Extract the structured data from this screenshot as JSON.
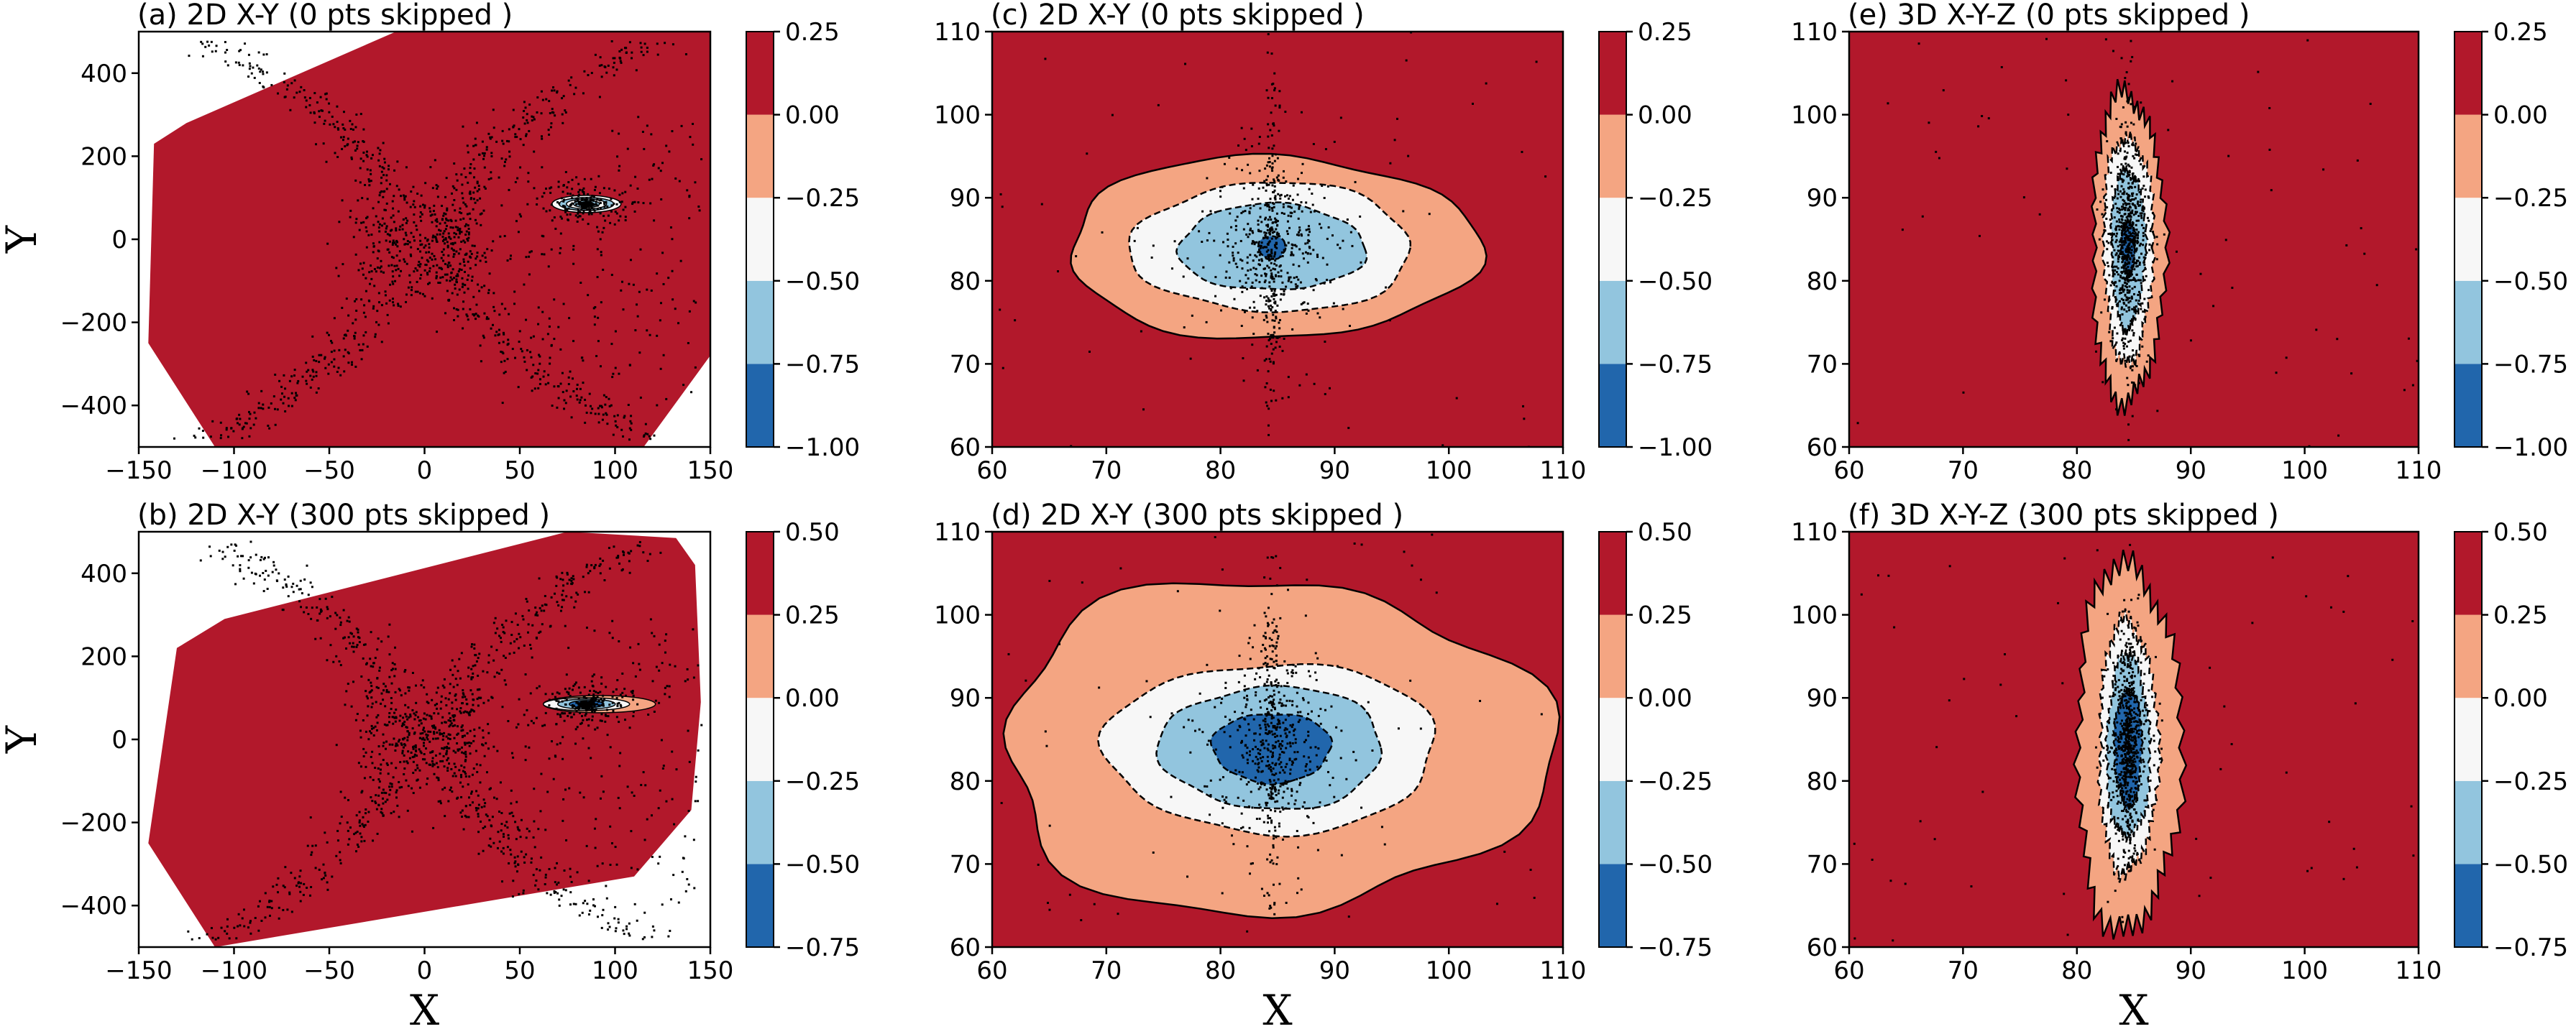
{
  "colors": {
    "level_red": "#b2182b",
    "level_salmon": "#f4a582",
    "level_white": "#f7f7f7",
    "level_lightblue": "#92c5de",
    "level_blue": "#2166ac"
  },
  "chart_data": [
    {
      "id": "a",
      "type": "contour",
      "title": "(a) 2D X-Y (0 pts skipped )",
      "xlabel": "",
      "ylabel": "Y",
      "xlim": [
        -150,
        150
      ],
      "ylim": [
        -500,
        500
      ],
      "xticks": [
        -150,
        -100,
        -50,
        0,
        50,
        100,
        150
      ],
      "yticks": [
        -400,
        -200,
        0,
        200,
        400
      ],
      "xtick_labels": [
        "−150",
        "−100",
        "−50",
        "0",
        "50",
        "100",
        "150"
      ],
      "ytick_labels": [
        "−400",
        "−200",
        "0",
        "200",
        "400"
      ],
      "colorbar": {
        "levels": [
          -1.0,
          -0.75,
          -0.5,
          -0.25,
          0.0,
          0.25
        ],
        "labels": [
          "−1.00",
          "−0.75",
          "−0.50",
          "−0.25",
          "0.00",
          "0.25"
        ]
      },
      "center": [
        85,
        85
      ],
      "hull": [
        [
          -142,
          230
        ],
        [
          -125,
          280
        ],
        [
          -15,
          500
        ],
        [
          150,
          500
        ],
        [
          150,
          -280
        ],
        [
          115,
          -500
        ],
        [
          -110,
          -500
        ],
        [
          -145,
          -250
        ]
      ],
      "regions": [
        [
          0.0,
          0.25
        ],
        [
          -0.25,
          0.0
        ],
        [
          -0.5,
          -0.25
        ],
        [
          -0.75,
          -0.5
        ],
        [
          -1.0,
          -0.75
        ]
      ]
    },
    {
      "id": "b",
      "type": "contour",
      "title": "(b) 2D X-Y (300 pts skipped )",
      "xlabel": "X",
      "ylabel": "Y",
      "xlim": [
        -150,
        150
      ],
      "ylim": [
        -500,
        500
      ],
      "xticks": [
        -150,
        -100,
        -50,
        0,
        50,
        100,
        150
      ],
      "yticks": [
        -400,
        -200,
        0,
        200,
        400
      ],
      "xtick_labels": [
        "−150",
        "−100",
        "−50",
        "0",
        "50",
        "100",
        "150"
      ],
      "ytick_labels": [
        "−400",
        "−200",
        "0",
        "200",
        "400"
      ],
      "colorbar": {
        "levels": [
          -0.75,
          -0.5,
          -0.25,
          0.0,
          0.25,
          0.5
        ],
        "labels": [
          "−0.75",
          "−0.50",
          "−0.25",
          "0.00",
          "0.25",
          "0.50"
        ]
      },
      "center": [
        85,
        85
      ],
      "hull": [
        [
          -130,
          220
        ],
        [
          -105,
          290
        ],
        [
          75,
          500
        ],
        [
          132,
          485
        ],
        [
          142,
          420
        ],
        [
          145,
          90
        ],
        [
          140,
          -170
        ],
        [
          110,
          -330
        ],
        [
          -110,
          -500
        ],
        [
          -145,
          -250
        ]
      ],
      "regions": [
        [
          0.25,
          0.5
        ],
        [
          0.0,
          0.25
        ],
        [
          -0.25,
          0.0
        ],
        [
          -0.5,
          -0.25
        ],
        [
          -0.75,
          -0.5
        ]
      ]
    },
    {
      "id": "c",
      "type": "contour",
      "title": "(c) 2D X-Y (0 pts skipped )",
      "xlabel": "",
      "ylabel": "",
      "xlim": [
        60,
        110
      ],
      "ylim": [
        60,
        110
      ],
      "xticks": [
        60,
        70,
        80,
        90,
        100,
        110
      ],
      "yticks": [
        60,
        70,
        80,
        90,
        100,
        110
      ],
      "xtick_labels": [
        "60",
        "70",
        "80",
        "90",
        "100",
        "110"
      ],
      "ytick_labels": [
        "60",
        "70",
        "80",
        "90",
        "100",
        "110"
      ],
      "colorbar": {
        "levels": [
          -1.0,
          -0.75,
          -0.5,
          -0.25,
          0.0,
          0.25
        ],
        "labels": [
          "−1.00",
          "−0.75",
          "−0.50",
          "−0.25",
          "0.00",
          "0.25"
        ]
      },
      "center": [
        84.5,
        84
      ],
      "regions": [
        [
          0.0,
          0.25
        ],
        [
          -0.25,
          0.0
        ],
        [
          -0.5,
          -0.25
        ],
        [
          -0.75,
          -0.5
        ],
        [
          -1.0,
          -0.75
        ]
      ]
    },
    {
      "id": "d",
      "type": "contour",
      "title": "(d) 2D X-Y (300 pts skipped )",
      "xlabel": "X",
      "ylabel": "",
      "xlim": [
        60,
        110
      ],
      "ylim": [
        60,
        110
      ],
      "xticks": [
        60,
        70,
        80,
        90,
        100,
        110
      ],
      "yticks": [
        60,
        70,
        80,
        90,
        100,
        110
      ],
      "xtick_labels": [
        "60",
        "70",
        "80",
        "90",
        "100",
        "110"
      ],
      "ytick_labels": [
        "60",
        "70",
        "80",
        "90",
        "100",
        "110"
      ],
      "colorbar": {
        "levels": [
          -0.75,
          -0.5,
          -0.25,
          0.0,
          0.25,
          0.5
        ],
        "labels": [
          "−0.75",
          "−0.50",
          "−0.25",
          "0.00",
          "0.25",
          "0.50"
        ]
      },
      "center": [
        84.5,
        84
      ],
      "regions": [
        [
          0.25,
          0.5
        ],
        [
          0.0,
          0.25
        ],
        [
          -0.25,
          0.0
        ],
        [
          -0.5,
          -0.25
        ],
        [
          -0.75,
          -0.5
        ]
      ]
    },
    {
      "id": "e",
      "type": "contour",
      "title": "(e) 3D X-Y-Z (0 pts skipped )",
      "xlabel": "",
      "ylabel": "",
      "xlim": [
        60,
        110
      ],
      "ylim": [
        60,
        110
      ],
      "xticks": [
        60,
        70,
        80,
        90,
        100,
        110
      ],
      "yticks": [
        60,
        70,
        80,
        90,
        100,
        110
      ],
      "xtick_labels": [
        "60",
        "70",
        "80",
        "90",
        "100",
        "110"
      ],
      "ytick_labels": [
        "60",
        "70",
        "80",
        "90",
        "100",
        "110"
      ],
      "colorbar": {
        "levels": [
          -1.0,
          -0.75,
          -0.5,
          -0.25,
          0.0,
          0.25
        ],
        "labels": [
          "−1.00",
          "−0.75",
          "−0.50",
          "−0.25",
          "0.00",
          "0.25"
        ]
      },
      "center": [
        84.5,
        84
      ],
      "regions": [
        [
          0.0,
          0.25
        ],
        [
          -0.25,
          0.0
        ],
        [
          -0.5,
          -0.25
        ],
        [
          -0.75,
          -0.5
        ],
        [
          -1.0,
          -0.75
        ]
      ]
    },
    {
      "id": "f",
      "type": "contour",
      "title": "(f) 3D X-Y-Z (300 pts skipped )",
      "xlabel": "X",
      "ylabel": "",
      "xlim": [
        60,
        110
      ],
      "ylim": [
        60,
        110
      ],
      "xticks": [
        60,
        70,
        80,
        90,
        100,
        110
      ],
      "yticks": [
        60,
        70,
        80,
        90,
        100,
        110
      ],
      "xtick_labels": [
        "60",
        "70",
        "80",
        "90",
        "100",
        "110"
      ],
      "ytick_labels": [
        "60",
        "70",
        "80",
        "90",
        "100",
        "110"
      ],
      "colorbar": {
        "levels": [
          -0.75,
          -0.5,
          -0.25,
          0.0,
          0.25,
          0.5
        ],
        "labels": [
          "−0.75",
          "−0.50",
          "−0.25",
          "0.00",
          "0.25",
          "0.50"
        ]
      },
      "center": [
        84.5,
        84
      ],
      "regions": [
        [
          0.25,
          0.5
        ],
        [
          0.0,
          0.25
        ],
        [
          -0.25,
          0.0
        ],
        [
          -0.5,
          -0.25
        ],
        [
          -0.75,
          -0.5
        ]
      ]
    }
  ]
}
